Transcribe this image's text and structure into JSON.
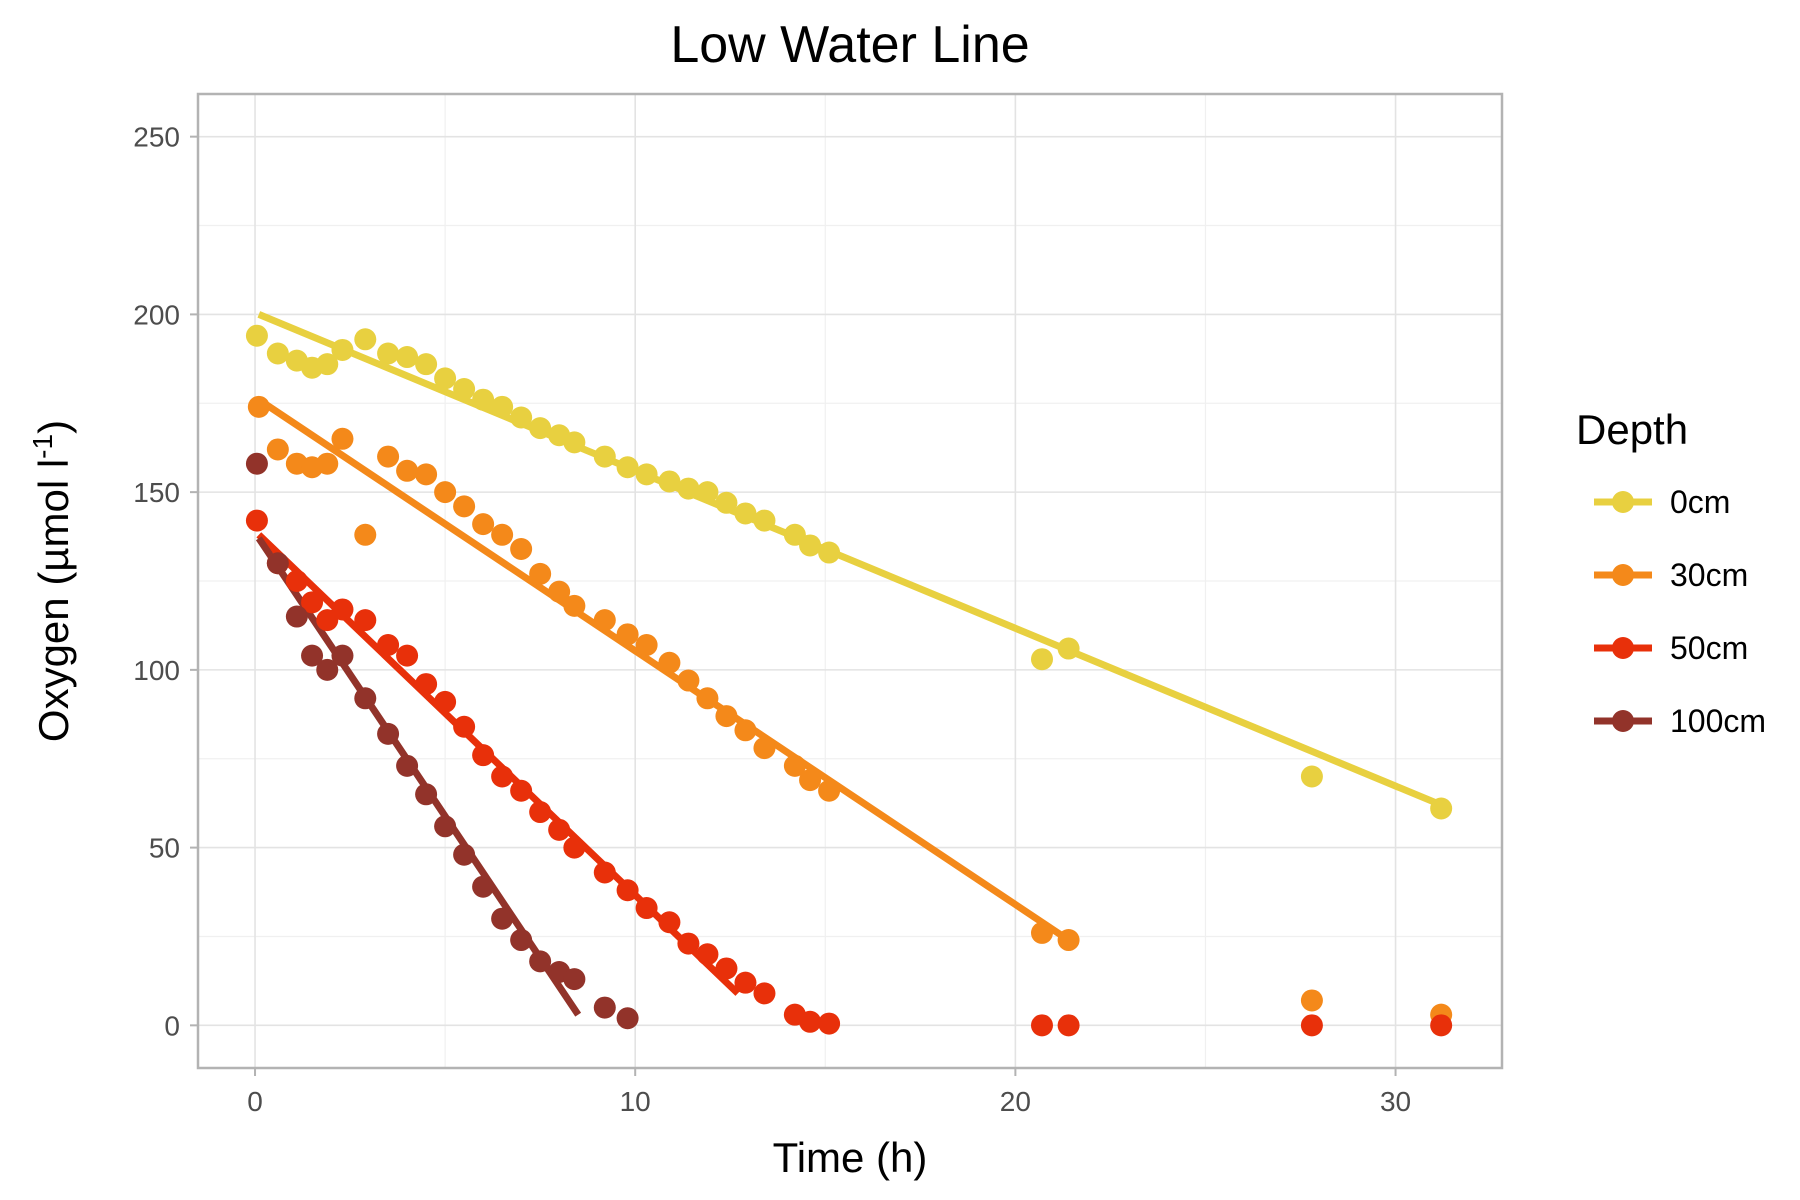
{
  "chart_data": {
    "type": "scatter",
    "title": "Low Water Line",
    "xlabel": "Time (h)",
    "ylabel": "Oxygen (µmol l",
    "ylabel_superscript": "-1",
    "ylabel_close": ")",
    "xlim": [
      -1.5,
      32.8
    ],
    "ylim": [
      -12,
      262
    ],
    "x_ticks": [
      0,
      10,
      20,
      30
    ],
    "y_ticks": [
      0,
      50,
      100,
      150,
      200,
      250
    ],
    "grid": true,
    "legend": {
      "title": "Depth",
      "position": "right"
    },
    "series": [
      {
        "name": "0cm",
        "color": "#E8D040",
        "points": [
          [
            0.05,
            194
          ],
          [
            0.6,
            189
          ],
          [
            1.1,
            187
          ],
          [
            1.5,
            185
          ],
          [
            1.9,
            186
          ],
          [
            2.3,
            190
          ],
          [
            2.9,
            193
          ],
          [
            3.5,
            189
          ],
          [
            4.0,
            188
          ],
          [
            4.5,
            186
          ],
          [
            5.0,
            182
          ],
          [
            5.5,
            179
          ],
          [
            6.0,
            176
          ],
          [
            6.5,
            174
          ],
          [
            7.0,
            171
          ],
          [
            7.5,
            168
          ],
          [
            8.0,
            166
          ],
          [
            8.4,
            164
          ],
          [
            9.2,
            160
          ],
          [
            9.8,
            157
          ],
          [
            10.3,
            155
          ],
          [
            10.9,
            153
          ],
          [
            11.4,
            151
          ],
          [
            11.9,
            150
          ],
          [
            12.4,
            147
          ],
          [
            12.9,
            144
          ],
          [
            13.4,
            142
          ],
          [
            14.2,
            138
          ],
          [
            14.6,
            135
          ],
          [
            15.1,
            133
          ],
          [
            20.7,
            103
          ],
          [
            21.4,
            106
          ],
          [
            27.8,
            70
          ],
          [
            31.2,
            61
          ]
        ],
        "fit": [
          [
            0.1,
            200
          ],
          [
            31.2,
            62
          ]
        ]
      },
      {
        "name": "30cm",
        "color": "#F4891A",
        "points": [
          [
            0.1,
            174
          ],
          [
            0.6,
            162
          ],
          [
            1.1,
            158
          ],
          [
            1.5,
            157
          ],
          [
            1.9,
            158
          ],
          [
            2.3,
            165
          ],
          [
            2.9,
            138
          ],
          [
            3.5,
            160
          ],
          [
            4.0,
            156
          ],
          [
            4.5,
            155
          ],
          [
            5.0,
            150
          ],
          [
            5.5,
            146
          ],
          [
            6.0,
            141
          ],
          [
            6.5,
            138
          ],
          [
            7.0,
            134
          ],
          [
            7.5,
            127
          ],
          [
            8.0,
            122
          ],
          [
            8.4,
            118
          ],
          [
            9.2,
            114
          ],
          [
            9.8,
            110
          ],
          [
            10.3,
            107
          ],
          [
            10.9,
            102
          ],
          [
            11.4,
            97
          ],
          [
            11.9,
            92
          ],
          [
            12.4,
            87
          ],
          [
            12.9,
            83
          ],
          [
            13.4,
            78
          ],
          [
            14.2,
            73
          ],
          [
            14.6,
            69
          ],
          [
            15.1,
            66
          ],
          [
            20.7,
            26
          ],
          [
            21.4,
            24
          ],
          [
            27.8,
            7
          ],
          [
            31.2,
            3
          ]
        ],
        "fit": [
          [
            0.1,
            176
          ],
          [
            21.4,
            24
          ]
        ]
      },
      {
        "name": "50cm",
        "color": "#E8300A",
        "points": [
          [
            0.05,
            142
          ],
          [
            0.6,
            130
          ],
          [
            1.1,
            125
          ],
          [
            1.5,
            119
          ],
          [
            1.9,
            114
          ],
          [
            2.3,
            117
          ],
          [
            2.9,
            114
          ],
          [
            3.5,
            107
          ],
          [
            4.0,
            104
          ],
          [
            4.5,
            96
          ],
          [
            5.0,
            91
          ],
          [
            5.5,
            84
          ],
          [
            6.0,
            76
          ],
          [
            6.5,
            70
          ],
          [
            7.0,
            66
          ],
          [
            7.5,
            60
          ],
          [
            8.0,
            55
          ],
          [
            8.4,
            50
          ],
          [
            9.2,
            43
          ],
          [
            9.8,
            38
          ],
          [
            10.3,
            33
          ],
          [
            10.9,
            29
          ],
          [
            11.4,
            23
          ],
          [
            11.9,
            20
          ],
          [
            12.4,
            16
          ],
          [
            12.9,
            12
          ],
          [
            13.4,
            9
          ],
          [
            14.2,
            3
          ],
          [
            14.6,
            1
          ],
          [
            15.1,
            0.5
          ],
          [
            20.7,
            0
          ],
          [
            21.4,
            0
          ],
          [
            27.8,
            0
          ],
          [
            31.2,
            0
          ]
        ],
        "fit": [
          [
            0.1,
            138
          ],
          [
            12.7,
            9
          ]
        ]
      },
      {
        "name": "100cm",
        "color": "#92332A",
        "points": [
          [
            0.05,
            158
          ],
          [
            0.6,
            130
          ],
          [
            1.1,
            115
          ],
          [
            1.5,
            104
          ],
          [
            1.9,
            100
          ],
          [
            2.3,
            104
          ],
          [
            2.9,
            92
          ],
          [
            3.5,
            82
          ],
          [
            4.0,
            73
          ],
          [
            4.5,
            65
          ],
          [
            5.0,
            56
          ],
          [
            5.5,
            48
          ],
          [
            6.0,
            39
          ],
          [
            6.5,
            30
          ],
          [
            7.0,
            24
          ],
          [
            7.5,
            18
          ],
          [
            8.0,
            15
          ],
          [
            8.4,
            13
          ],
          [
            9.2,
            5
          ],
          [
            9.8,
            2
          ]
        ],
        "fit": [
          [
            0.1,
            137
          ],
          [
            8.5,
            3
          ]
        ]
      }
    ]
  }
}
